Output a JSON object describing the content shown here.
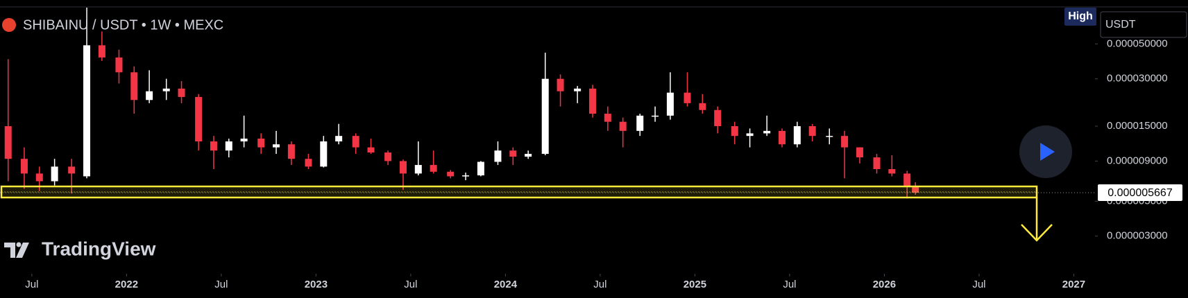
{
  "chart_data": {
    "type": "candlestick",
    "title": "SHIBAINU / USDT • 1W • MEXC",
    "badge": "High",
    "currency": "USDT",
    "watermark": "TradingView",
    "log_scale": true,
    "up_color": "#ffffff",
    "down_color": "#f23645",
    "xlim": [
      2021.332,
      2027.112
    ],
    "xticks": [
      {
        "value": 2021.5,
        "label": "Jul"
      },
      2022,
      {
        "value": 2022.5,
        "label": "Jul"
      },
      2023,
      {
        "value": 2023.5,
        "label": "Jul"
      },
      2024,
      {
        "value": 2024.5,
        "label": "Jul"
      },
      2025,
      {
        "value": 2025.5,
        "label": "Jul"
      },
      2026,
      {
        "value": 2026.5,
        "label": "Jul"
      },
      2027
    ],
    "ylim": [
      1.73e-06,
      8.59e-05
    ],
    "yticks": [
      {
        "value": 5e-05,
        "label": "0.000050000"
      },
      {
        "value": 3e-05,
        "label": "0.000030000"
      },
      {
        "value": 1.5e-05,
        "label": "0.000015000"
      },
      {
        "value": 9e-06,
        "label": "0.000009000"
      },
      {
        "value": 5e-06,
        "label": "0.000005000"
      },
      {
        "value": 3e-06,
        "label": "0.000003000"
      }
    ],
    "last_price": 5.667e-06,
    "x": [
      2021.375,
      2021.46,
      2021.54,
      2021.62,
      2021.71,
      2021.79,
      2021.87,
      2021.96,
      2022.04,
      2022.12,
      2022.21,
      2022.29,
      2022.38,
      2022.46,
      2022.54,
      2022.62,
      2022.71,
      2022.79,
      2022.87,
      2022.96,
      2023.04,
      2023.12,
      2023.21,
      2023.29,
      2023.38,
      2023.46,
      2023.54,
      2023.62,
      2023.71,
      2023.79,
      2023.87,
      2023.96,
      2024.04,
      2024.12,
      2024.21,
      2024.29,
      2024.38,
      2024.46,
      2024.54,
      2024.62,
      2024.71,
      2024.79,
      2024.87,
      2024.96,
      2025.04,
      2025.12,
      2025.21,
      2025.29,
      2025.38,
      2025.46,
      2025.54,
      2025.62,
      2025.71,
      2025.79,
      2025.87,
      2025.96,
      2026.04,
      2026.12,
      2026.164
    ],
    "open": [
      1.5e-05,
      9.3e-06,
      7.5e-06,
      6.7e-06,
      8.3e-06,
      7.2e-06,
      4.9e-05,
      4.1e-05,
      3.3e-05,
      2.2e-05,
      2.5e-05,
      2.6e-05,
      2.3e-05,
      1.2e-05,
      1.05e-05,
      1.2e-05,
      1.25e-05,
      1.1e-05,
      1.15e-05,
      9.3e-06,
      8.3e-06,
      1.2e-05,
      1.3e-05,
      1.1e-05,
      1.02e-05,
      9e-06,
      7.5e-06,
      8.5e-06,
      7.7e-06,
      7.2e-06,
      7.3e-06,
      8.9e-06,
      1.05e-05,
      9.6e-06,
      1e-05,
      3e-05,
      2.5e-05,
      2.6e-05,
      1.8e-05,
      1.6e-05,
      1.4e-05,
      1.75e-05,
      1.75e-05,
      2.45e-05,
      2.1e-05,
      1.9e-05,
      1.5e-05,
      1.3e-05,
      1.35e-05,
      1.4e-05,
      1.15e-05,
      1.5e-05,
      1.3e-05,
      1.3e-05,
      1.1e-05,
      9.5e-06,
      8e-06,
      7.5e-06,
      6.2e-06
    ],
    "high": [
      4e-05,
      1.1e-05,
      8.3e-06,
      9.3e-06,
      9.3e-06,
      8.5e-05,
      6e-05,
      4.6e-05,
      3.6e-05,
      3.4e-05,
      3e-05,
      2.9e-05,
      2.4e-05,
      1.3e-05,
      1.25e-05,
      1.75e-05,
      1.35e-05,
      1.4e-05,
      1.2e-05,
      1e-05,
      1.3e-05,
      1.55e-05,
      1.35e-05,
      1.25e-05,
      1.05e-05,
      9.2e-06,
      1.2e-05,
      1.05e-05,
      7.9e-06,
      7.6e-06,
      9e-06,
      1.2e-05,
      1.1e-05,
      1.05e-05,
      4.4e-05,
      3.2e-05,
      2.7e-05,
      2.75e-05,
      2e-05,
      1.7e-05,
      1.8e-05,
      2e-05,
      3.3e-05,
      3.3e-05,
      2.4e-05,
      2e-05,
      1.6e-05,
      1.45e-05,
      1.75e-05,
      1.45e-05,
      1.6e-05,
      1.55e-05,
      1.45e-05,
      1.4e-05,
      1.1e-05,
      1e-05,
      9.8e-06,
      7.8e-06,
      6.6e-06
    ],
    "low": [
      6.7e-06,
      6e-06,
      5.8e-06,
      6.3e-06,
      5.6e-06,
      7e-06,
      3.9e-05,
      2.8e-05,
      1.8e-05,
      2.1e-05,
      2.2e-05,
      2.1e-05,
      1.05e-05,
      8e-06,
      9.5e-06,
      1.1e-05,
      1e-05,
      1e-05,
      8.5e-06,
      8e-06,
      8.2e-06,
      1.15e-05,
      1e-05,
      1e-05,
      8.5e-06,
      5.9e-06,
      7.3e-06,
      7.5e-06,
      7e-06,
      6.8e-06,
      7.2e-06,
      8.5e-06,
      8.5e-06,
      9.3e-06,
      9.8e-06,
      2e-05,
      2.1e-05,
      1.7e-05,
      1.4e-05,
      1.1e-05,
      1.3e-05,
      1.6e-05,
      1.65e-05,
      2e-05,
      1.8e-05,
      1.35e-05,
      1.15e-05,
      1.1e-05,
      1.3e-05,
      1.1e-05,
      1.1e-05,
      1.2e-05,
      1.15e-05,
      7e-06,
      8.7e-06,
      7.5e-06,
      7.2e-06,
      5.2e-06,
      5.5e-06
    ],
    "close": [
      9.3e-06,
      7.5e-06,
      6.7e-06,
      8.3e-06,
      7.5e-06,
      4.9e-05,
      4.1e-05,
      3.3e-05,
      2.2e-05,
      2.5e-05,
      2.6e-05,
      2.3e-05,
      1.2e-05,
      1.05e-05,
      1.2e-05,
      1.25e-05,
      1.1e-05,
      1.15e-05,
      9.3e-06,
      8.3e-06,
      1.2e-05,
      1.3e-05,
      1.1e-05,
      1.02e-05,
      9e-06,
      7.5e-06,
      8.5e-06,
      7.7e-06,
      7.2e-06,
      7.3e-06,
      8.9e-06,
      1.05e-05,
      9.6e-06,
      1e-05,
      3e-05,
      2.5e-05,
      2.6e-05,
      1.8e-05,
      1.6e-05,
      1.4e-05,
      1.75e-05,
      1.75e-05,
      2.45e-05,
      2.1e-05,
      1.9e-05,
      1.5e-05,
      1.3e-05,
      1.35e-05,
      1.4e-05,
      1.15e-05,
      1.5e-05,
      1.3e-05,
      1.3e-05,
      1.1e-05,
      9.5e-06,
      8e-06,
      7.5e-06,
      6.2e-06,
      5.667e-06
    ]
  }
}
